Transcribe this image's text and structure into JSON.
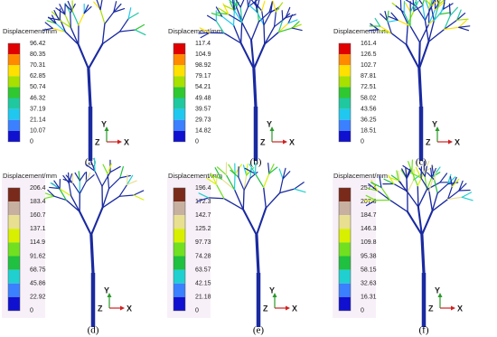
{
  "panels": [
    {
      "legend_title": "Displacement/mm",
      "legend_labels": [
        "96.42",
        "80.35",
        "70.31",
        "62.85",
        "50.74",
        "46.32",
        "37.19",
        "21.14",
        "10.07",
        "0"
      ],
      "axis_labels": {
        "y": "Y",
        "z": "Z",
        "x": "X"
      },
      "caption": "(a)"
    },
    {
      "legend_title": "Displacement/mm",
      "legend_labels": [
        "117.4",
        "104.9",
        "98.92",
        "79.17",
        "54.21",
        "49.48",
        "39.57",
        "29.73",
        "14.82",
        "0"
      ],
      "axis_labels": {
        "y": "Y",
        "z": "Z",
        "x": "X"
      },
      "caption": "(b)"
    },
    {
      "legend_title": "Displacement/mm",
      "legend_labels": [
        "161.4",
        "126.5",
        "102.7",
        "87.81",
        "72.51",
        "58.02",
        "43.56",
        "36.25",
        "18.51",
        "0"
      ],
      "axis_labels": {
        "y": "Y",
        "z": "Z",
        "x": "X"
      },
      "caption": "(c)"
    },
    {
      "legend_title": "Displacement/mm",
      "legend_labels": [
        "206.4",
        "183.4",
        "160.7",
        "137.1",
        "114.9",
        "91.62",
        "68.75",
        "45.86",
        "22.92",
        "0"
      ],
      "axis_labels": {
        "y": "Y",
        "z": "Z",
        "x": "X"
      },
      "caption": "(d)"
    },
    {
      "legend_title": "Displacement/mm",
      "legend_labels": [
        "196.4",
        "172.3",
        "142.7",
        "125.2",
        "97.73",
        "74.28",
        "63.57",
        "42.15",
        "21.18",
        "0"
      ],
      "axis_labels": {
        "y": "Y",
        "z": "Z",
        "x": "X"
      },
      "caption": "(e)"
    },
    {
      "legend_title": "Displacement/mm",
      "legend_labels": [
        "257.4",
        "207.6",
        "184.7",
        "146.3",
        "109.8",
        "95.38",
        "58.15",
        "32.63",
        "16.31",
        "0"
      ],
      "axis_labels": {
        "y": "Y",
        "z": "Z",
        "x": "X"
      },
      "caption": "(f)"
    }
  ]
}
